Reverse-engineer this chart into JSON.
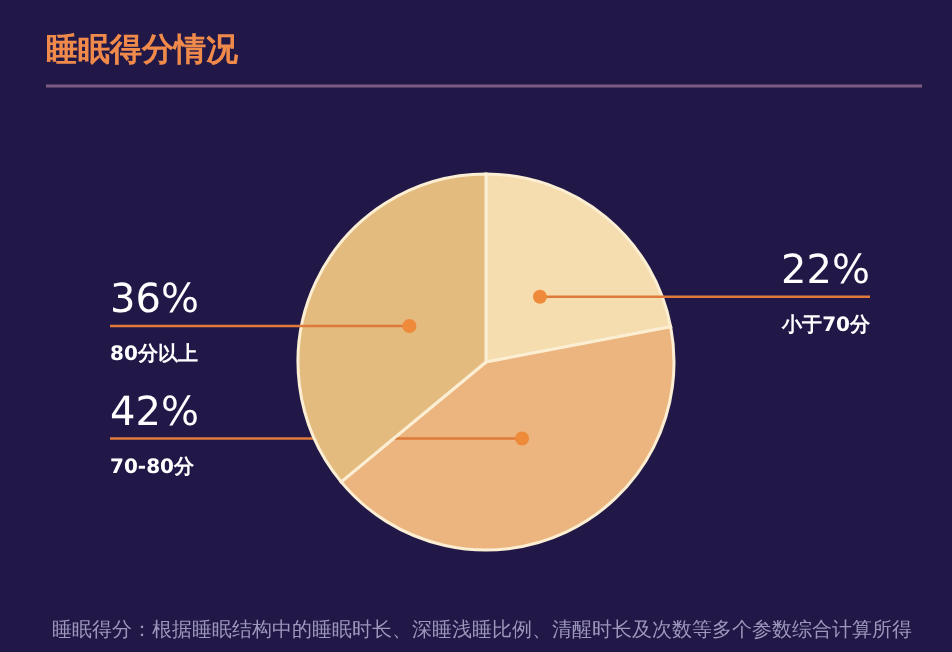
{
  "chart_data": {
    "type": "pie",
    "title": "睡眠得分情况",
    "categories": [
      "小于70分",
      "70-80分",
      "80分以上"
    ],
    "values": [
      22,
      42,
      36
    ],
    "value_labels": [
      "22%",
      "42%",
      "36%"
    ],
    "colors": [
      "#f5ddb0",
      "#ecb57f",
      "#e4bb7f"
    ],
    "annotations": [
      "睡眠得分：根据睡眠结构中的睡眠时长、深睡浅睡比例、清醒时长及次数等多个参数综合计算所得"
    ]
  }
}
